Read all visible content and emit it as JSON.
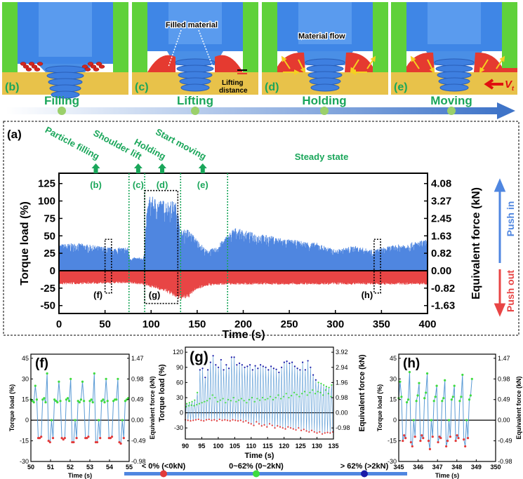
{
  "colors": {
    "push_in": "#4f86e0",
    "push_out": "#e84545",
    "stage_green": "#1aa65a",
    "low": "#e23a3a",
    "mid": "#3fdc3f",
    "high": "#1a1aa8"
  },
  "illustration": {
    "panels": [
      {
        "label": "(b)"
      },
      {
        "label": "(c)",
        "annotation": "Filled material",
        "annotation2": "Lifting",
        "annotation3": "distance"
      },
      {
        "label": "(d)",
        "annotation": "Material flow"
      },
      {
        "label": "(e)",
        "annotation": "V",
        "annotation_sub": "t"
      }
    ],
    "stages": [
      "Filling",
      "Lifting",
      "Holding",
      "Moving"
    ]
  },
  "chart_data": [
    {
      "id": "a",
      "panel_label": "(a)",
      "type": "area",
      "xlabel": "Time (s)",
      "ylabel": "Torque load (%)",
      "y2label": "Equivalent force (kN)",
      "xlim": [
        0,
        400
      ],
      "ylim": [
        -55,
        140
      ],
      "xticks": [
        0,
        50,
        100,
        150,
        200,
        250,
        300,
        350,
        400
      ],
      "yticks": [
        125,
        100,
        75,
        50,
        25,
        0,
        -25,
        -50
      ],
      "y2ticks": [
        "4.08",
        "3.27",
        "2.45",
        "1.63",
        "0.82",
        "0.00",
        "-0.82",
        "-1.63"
      ],
      "series": [
        {
          "name": "Push in",
          "envelope": [
            [
              0,
              38
            ],
            [
              20,
              40
            ],
            [
              40,
              36
            ],
            [
              60,
              33
            ],
            [
              75,
              34
            ],
            [
              77,
              19
            ],
            [
              92,
              19
            ],
            [
              95,
              80
            ],
            [
              98,
              108
            ],
            [
              110,
              102
            ],
            [
              125,
              100
            ],
            [
              129,
              95
            ],
            [
              131,
              58
            ],
            [
              140,
              60
            ],
            [
              150,
              45
            ],
            [
              160,
              30
            ],
            [
              170,
              33
            ],
            [
              183,
              52
            ],
            [
              190,
              62
            ],
            [
              210,
              55
            ],
            [
              250,
              45
            ],
            [
              280,
              40
            ],
            [
              300,
              30
            ],
            [
              320,
              36
            ],
            [
              340,
              30
            ],
            [
              360,
              36
            ],
            [
              380,
              40
            ],
            [
              400,
              45
            ]
          ]
        },
        {
          "name": "Push out",
          "envelope": [
            [
              0,
              -20
            ],
            [
              70,
              -18
            ],
            [
              90,
              -20
            ],
            [
              100,
              -24
            ],
            [
              115,
              -30
            ],
            [
              128,
              -40
            ],
            [
              132,
              -42
            ],
            [
              140,
              -40
            ],
            [
              148,
              -28
            ],
            [
              160,
              -22
            ],
            [
              180,
              -20
            ],
            [
              400,
              -20
            ]
          ]
        }
      ],
      "stage_markers": [
        {
          "label": "Particle filling",
          "tag": "(b)",
          "time": 40
        },
        {
          "label": "Shoulder lift",
          "tag": "(c)",
          "time": 86
        },
        {
          "label": "Holding",
          "tag": "(d)",
          "time": 112
        },
        {
          "label": "Start moving",
          "tag": "(e)",
          "time": 156
        }
      ],
      "phase_boundaries": [
        76,
        93,
        132,
        183
      ],
      "steady_label": "Steady state",
      "zoom_boxes": [
        {
          "tag": "(f)",
          "t": [
            50,
            57
          ],
          "y": [
            -32,
            45
          ]
        },
        {
          "tag": "(g)",
          "t": [
            93,
            129
          ],
          "y": [
            -47,
            115
          ]
        },
        {
          "tag": "(h)",
          "t": [
            342,
            349
          ],
          "y": [
            -32,
            45
          ]
        }
      ],
      "legend": {
        "push_in": "Push in",
        "push_out": "Push out"
      }
    },
    {
      "id": "f",
      "panel_label": "(f)",
      "type": "line",
      "xlabel": "Time (s)",
      "ylabel": "Torque load (%)",
      "y2label": "Equivalent force (kN)",
      "xlim": [
        50,
        55
      ],
      "ylim": [
        -30,
        48
      ],
      "xticks": [
        50,
        51,
        52,
        53,
        54,
        55
      ],
      "yticks": [
        45,
        30,
        15,
        0,
        -15,
        -30
      ],
      "y2ticks": [
        "1.47",
        "0.98",
        "0.49",
        "0.00",
        "-0.49",
        "-0.98"
      ],
      "t0": 50.0,
      "dt": 0.075,
      "values": [
        15,
        14,
        13,
        25,
        15,
        -13,
        -13,
        -12,
        15,
        16,
        13,
        34,
        -15,
        -16,
        0,
        -13,
        15,
        14,
        13,
        28,
        14,
        -13,
        -14,
        -13,
        15,
        16,
        14,
        30,
        -16,
        -16,
        0,
        -13,
        14,
        13,
        15,
        28,
        14,
        -13,
        -13,
        -12,
        14,
        15,
        13,
        34,
        -16,
        -16,
        0,
        -13,
        14,
        15,
        13,
        30,
        14,
        -13,
        -13,
        -12,
        14,
        15,
        15,
        30,
        -16,
        -17,
        0,
        -13,
        14,
        15,
        16
      ]
    },
    {
      "id": "g",
      "panel_label": "(g)",
      "type": "line",
      "xlabel": "Time (s)",
      "ylabel": "Torque load (%)",
      "y2label": "Equivalent force (kN)",
      "xlim": [
        90,
        135
      ],
      "ylim": [
        -52,
        130
      ],
      "xticks": [
        90,
        95,
        100,
        105,
        110,
        115,
        120,
        125,
        130,
        135
      ],
      "yticks": [
        120,
        90,
        60,
        30,
        0,
        -30
      ],
      "y2ticks": [
        "3.92",
        "2.94",
        "1.96",
        "0.98",
        "0.00",
        "-0.98"
      ],
      "t0": 90.0,
      "dt": 0.8,
      "peaks": [
        18,
        20,
        22,
        25,
        40,
        85,
        88,
        70,
        85,
        100,
        113,
        95,
        90,
        105,
        85,
        95,
        88,
        110,
        110,
        95,
        98,
        95,
        90,
        92,
        95,
        85,
        93,
        88,
        95,
        92,
        90,
        85,
        92,
        88,
        86,
        80,
        90,
        100,
        102,
        98,
        100,
        92,
        88,
        85,
        100,
        85,
        103,
        90,
        75,
        65,
        60,
        58,
        55,
        52,
        50,
        55,
        60
      ],
      "mids": [
        12,
        14,
        15,
        14,
        16,
        18,
        20,
        22,
        24,
        28,
        35,
        30,
        22,
        25,
        28,
        20,
        26,
        24,
        30,
        22,
        25,
        28,
        24,
        20,
        26,
        30,
        22,
        28,
        25,
        30,
        26,
        28,
        32,
        26,
        30,
        35,
        28,
        32,
        38,
        30,
        34,
        40,
        36,
        32,
        38,
        42,
        35,
        40,
        45,
        38,
        42,
        40,
        35,
        45,
        38,
        32,
        40
      ],
      "troughs": [
        -14,
        -15,
        -16,
        -15,
        -14,
        -13,
        -15,
        -16,
        -14,
        -13,
        -15,
        -14,
        -16,
        -13,
        -15,
        -14,
        -15,
        -16,
        -14,
        -15,
        -16,
        -15,
        -18,
        -16,
        -20,
        -22,
        -25,
        -18,
        -22,
        -26,
        -24,
        -28,
        -22,
        -25,
        -30,
        -26,
        -28,
        -30,
        -32,
        -28,
        -30,
        -32,
        -34,
        -30,
        -35,
        -33,
        -36,
        -38,
        -35,
        -38,
        -40,
        -38,
        -42,
        -40,
        -39,
        -40,
        -38
      ]
    },
    {
      "id": "h",
      "panel_label": "(h)",
      "type": "line",
      "xlabel": "Time (s)",
      "ylabel": "Torque load (%)",
      "y2label": "Equivalent force (kN)",
      "xlim": [
        345,
        350
      ],
      "ylim": [
        -30,
        48
      ],
      "xticks": [
        345,
        346,
        347,
        348,
        349,
        350
      ],
      "yticks": [
        45,
        30,
        15,
        0,
        -15,
        -30
      ],
      "y2ticks": [
        "1.47",
        "0.98",
        "0.49",
        "0.00",
        "-0.49",
        "-0.98"
      ],
      "t0": 345.0,
      "dt": 0.07,
      "values": [
        16,
        28,
        17,
        -15,
        -11,
        -13,
        13,
        15,
        35,
        -16,
        -19,
        0,
        -12,
        14,
        18,
        27,
        -15,
        -11,
        -13,
        16,
        20,
        34,
        -15,
        -21,
        0,
        -12,
        14,
        17,
        25,
        -16,
        -12,
        -13,
        14,
        16,
        29,
        -19,
        -15,
        0,
        -12,
        15,
        17,
        25,
        -15,
        -11,
        -13,
        14,
        17,
        33,
        -14,
        -19,
        0,
        -13,
        15,
        18,
        30
      ]
    }
  ],
  "legend": {
    "items": [
      {
        "label": "< 0% (<0kN)",
        "color": "#e23a3a"
      },
      {
        "label": "0~62% (0~2kN)",
        "color": "#3fdc3f"
      },
      {
        "label": "> 62% (>2kN)",
        "color": "#1a1aa8"
      }
    ]
  }
}
